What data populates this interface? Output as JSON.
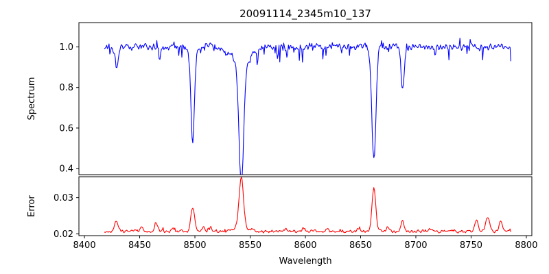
{
  "figure": {
    "title": "20091114_2345m10_137",
    "background": "#ffffff"
  },
  "chart_data": [
    {
      "type": "line",
      "title": "20091114_2345m10_137",
      "ylabel": "Spectrum",
      "legend": "none",
      "grid": false,
      "color": "#0000ff",
      "xlim": [
        8395,
        8805
      ],
      "ylim": [
        0.37,
        1.12
      ],
      "yticks": [
        {
          "v": 0.4,
          "label": "0.4"
        },
        {
          "v": 0.6,
          "label": "0.6"
        },
        {
          "v": 0.8,
          "label": "0.8"
        },
        {
          "v": 1.0,
          "label": "1.0"
        }
      ],
      "x_start": 8418,
      "x_end": 8786,
      "n_points": 520,
      "continuum": 1.0,
      "noise_amplitude": 0.022,
      "absorption_lines": [
        {
          "center": 8429,
          "depth": 0.1,
          "sigma": 1.2
        },
        {
          "center": 8468,
          "depth": 0.07,
          "sigma": 1.0
        },
        {
          "center": 8498,
          "depth": 0.47,
          "sigma": 1.6
        },
        {
          "center": 8542,
          "depth": 0.6,
          "sigma": 2.1
        },
        {
          "center": 8542,
          "depth": 0.07,
          "sigma": 9.0
        },
        {
          "center": 8662,
          "depth": 0.55,
          "sigma": 1.9
        },
        {
          "center": 8688,
          "depth": 0.21,
          "sigma": 1.4
        }
      ]
    },
    {
      "type": "line",
      "ylabel": "Error",
      "xlabel": "Wavelength",
      "legend": "none",
      "grid": false,
      "color": "#ff0000",
      "xlim": [
        8395,
        8805
      ],
      "ylim": [
        0.0195,
        0.0358
      ],
      "yticks": [
        {
          "v": 0.02,
          "label": "0.02"
        },
        {
          "v": 0.03,
          "label": "0.03"
        }
      ],
      "xticks": [
        {
          "v": 8400,
          "label": "8400"
        },
        {
          "v": 8450,
          "label": "8450"
        },
        {
          "v": 8500,
          "label": "8500"
        },
        {
          "v": 8550,
          "label": "8550"
        },
        {
          "v": 8600,
          "label": "8600"
        },
        {
          "v": 8650,
          "label": "8650"
        },
        {
          "v": 8700,
          "label": "8700"
        },
        {
          "v": 8750,
          "label": "8750"
        },
        {
          "v": 8800,
          "label": "8800"
        }
      ],
      "x_start": 8418,
      "x_end": 8786,
      "n_points": 520,
      "baseline": 0.0207,
      "noise_amplitude": 0.0005,
      "peaks": [
        {
          "center": 8429,
          "height": 0.003,
          "sigma": 1.5
        },
        {
          "center": 8452,
          "height": 0.0012,
          "sigma": 1.2
        },
        {
          "center": 8465,
          "height": 0.0023,
          "sigma": 1.2
        },
        {
          "center": 8480,
          "height": 0.0008,
          "sigma": 1.0
        },
        {
          "center": 8498,
          "height": 0.0068,
          "sigma": 1.6
        },
        {
          "center": 8508,
          "height": 0.0015,
          "sigma": 1.2
        },
        {
          "center": 8514,
          "height": 0.001,
          "sigma": 1.0
        },
        {
          "center": 8542,
          "height": 0.014,
          "sigma": 1.8
        },
        {
          "center": 8542,
          "height": 0.0015,
          "sigma": 6.0
        },
        {
          "center": 8582,
          "height": 0.0008,
          "sigma": 1.2
        },
        {
          "center": 8598,
          "height": 0.0007,
          "sigma": 1.0
        },
        {
          "center": 8620,
          "height": 0.0007,
          "sigma": 1.0
        },
        {
          "center": 8648,
          "height": 0.0008,
          "sigma": 1.0
        },
        {
          "center": 8662,
          "height": 0.012,
          "sigma": 1.7
        },
        {
          "center": 8675,
          "height": 0.0012,
          "sigma": 1.2
        },
        {
          "center": 8688,
          "height": 0.0028,
          "sigma": 1.3
        },
        {
          "center": 8713,
          "height": 0.0008,
          "sigma": 1.0
        },
        {
          "center": 8755,
          "height": 0.003,
          "sigma": 1.5
        },
        {
          "center": 8765,
          "height": 0.0038,
          "sigma": 1.8
        },
        {
          "center": 8777,
          "height": 0.0028,
          "sigma": 1.5
        }
      ]
    }
  ]
}
